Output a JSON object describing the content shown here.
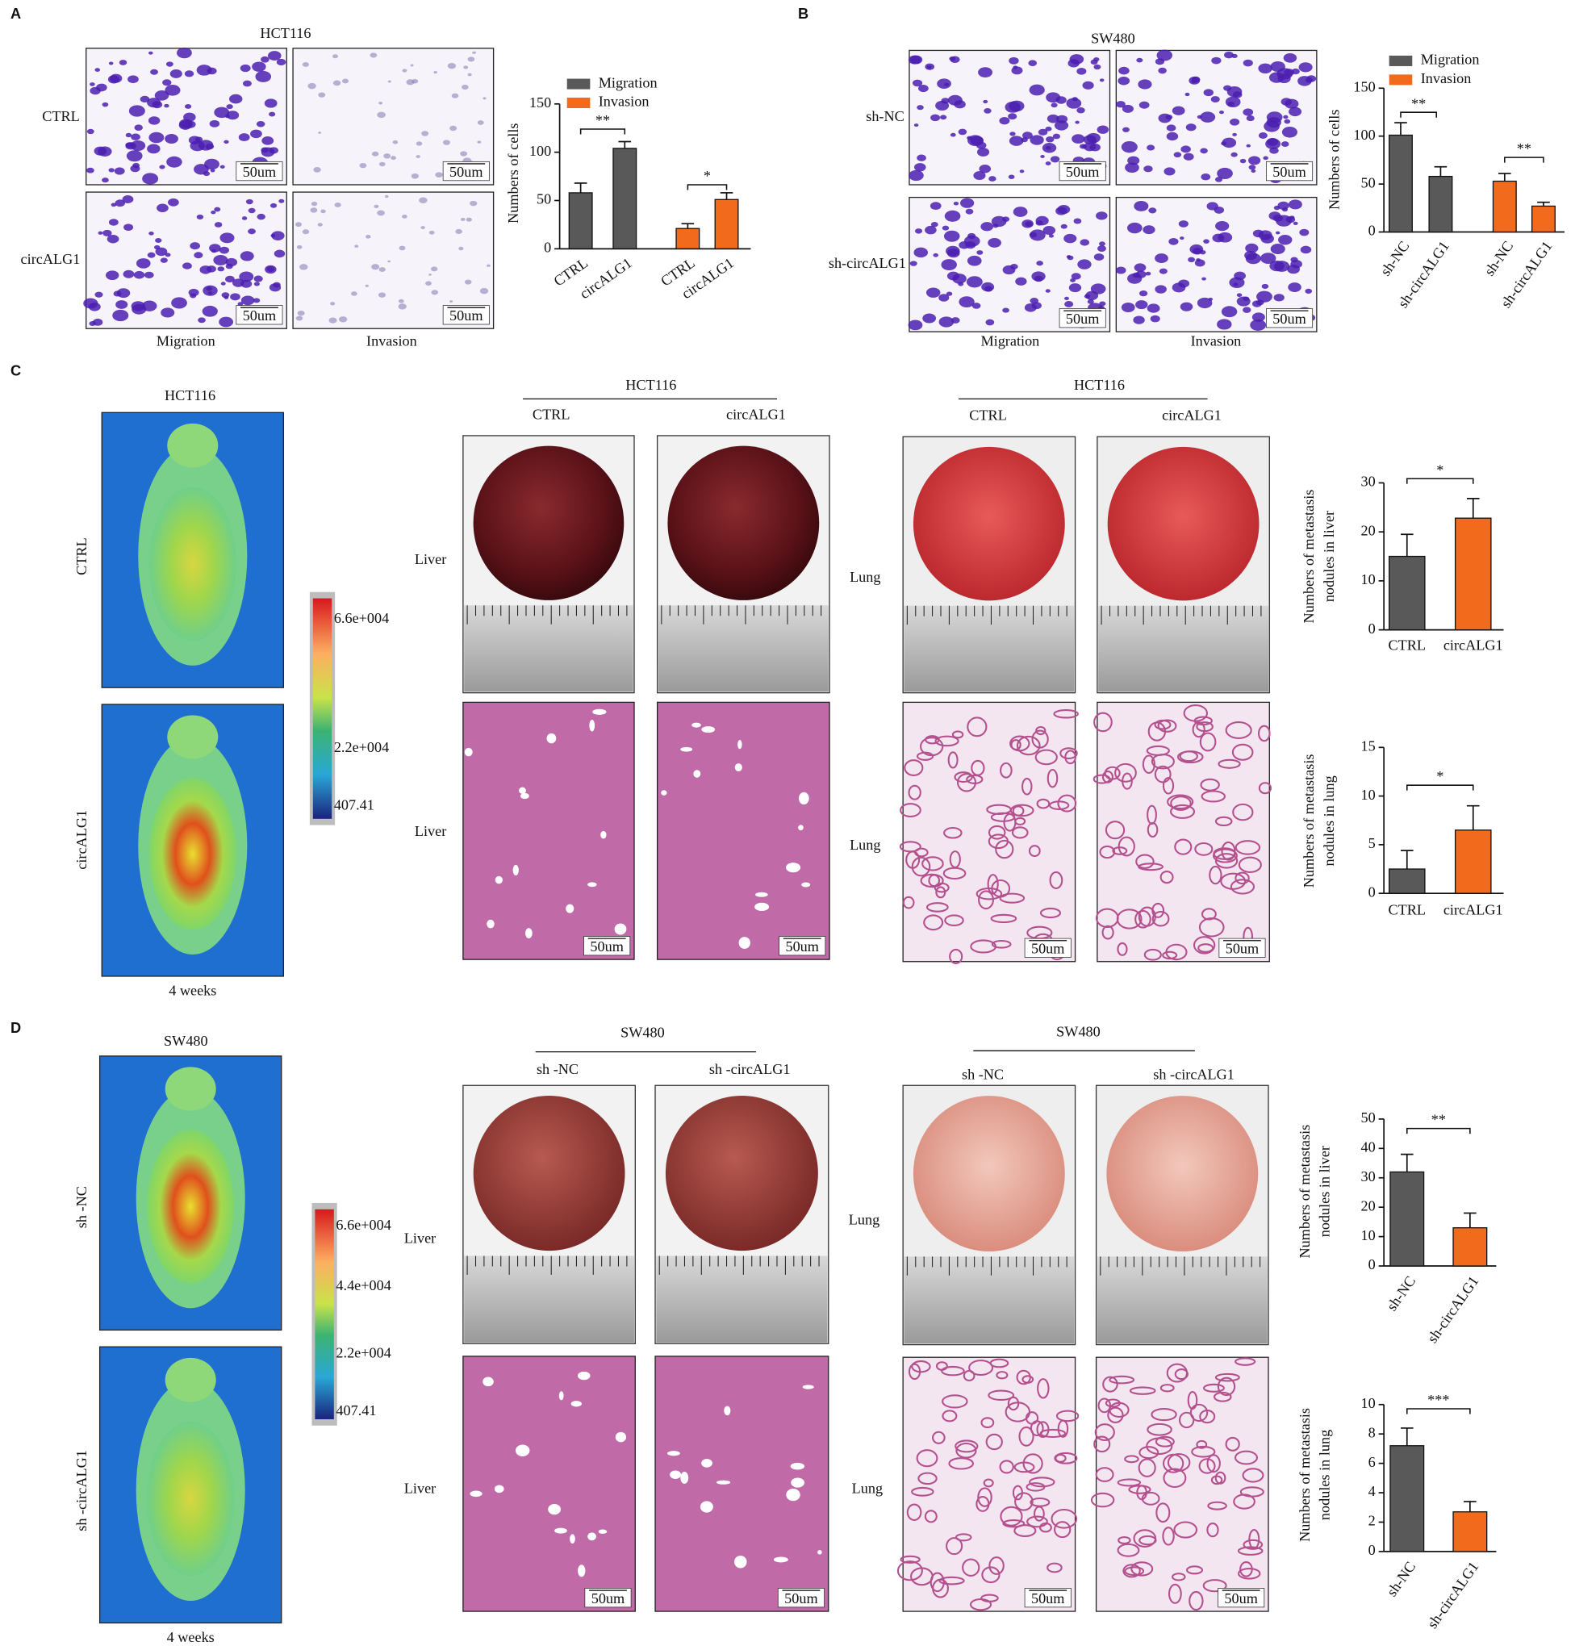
{
  "panel_labels": [
    "A",
    "B",
    "C",
    "D"
  ],
  "panel_a": {
    "cell_line": "HCT116",
    "rows": [
      "CTRL",
      "circALG1"
    ],
    "columns": [
      "Migration",
      "Invasion"
    ],
    "scale_bar": "50um"
  },
  "panel_b": {
    "cell_line": "SW480",
    "rows": [
      "sh-NC",
      "sh-circALG1"
    ],
    "columns": [
      "Migration",
      "Invasion"
    ],
    "scale_bar": "50um"
  },
  "panel_c": {
    "imaging": {
      "cell_line": "HCT116",
      "rows": [
        "CTRL",
        "circALG1"
      ],
      "time": "4  weeks",
      "colorbar": [
        "6.6e+004",
        "2.2e+004",
        "407.41"
      ]
    },
    "liver": {
      "cell_line": "HCT116",
      "groups": [
        "CTRL",
        "circALG1"
      ],
      "rows": [
        "Liver",
        "Liver"
      ]
    },
    "lung": {
      "cell_line": "HCT116",
      "groups": [
        "CTRL",
        "circALG1"
      ],
      "rows": [
        "Lung",
        "Lung"
      ]
    },
    "scale_bar": "50um"
  },
  "panel_d": {
    "imaging": {
      "cell_line": "SW480",
      "rows": [
        "sh -NC",
        "sh -circALG1"
      ],
      "time": "4  weeks",
      "colorbar": [
        "6.6e+004",
        "4.4e+004",
        "2.2e+004",
        "407.41"
      ]
    },
    "liver": {
      "cell_line": "SW480",
      "groups": [
        "sh -NC",
        "sh -circALG1"
      ],
      "rows": [
        "Liver",
        "Liver"
      ]
    },
    "lung": {
      "cell_line": "SW480",
      "groups": [
        "sh -NC",
        "sh -circALG1"
      ],
      "rows": [
        "Lung",
        "Lung"
      ]
    },
    "scale_bar": "50um"
  },
  "chart_data": [
    {
      "type": "bar",
      "ylabel": "Numbers of cells",
      "categories": [
        "CTRL",
        "circALG1"
      ],
      "series": [
        {
          "name": "Migration",
          "color": "#595959",
          "values": [
            58,
            104
          ],
          "errors": [
            10,
            7
          ]
        },
        {
          "name": "Invasion",
          "color": "#f26b1d",
          "values": [
            21,
            51
          ],
          "errors": [
            5,
            7
          ]
        }
      ],
      "ylim": [
        0,
        150
      ],
      "yticks": [
        0,
        50,
        100,
        150
      ],
      "annotations": [
        "**",
        "*"
      ]
    },
    {
      "type": "bar",
      "ylabel": "Numbers of cells",
      "categories": [
        "sh-NC",
        "sh-circALG1"
      ],
      "series": [
        {
          "name": "Migration",
          "color": "#595959",
          "values": [
            101,
            58
          ],
          "errors": [
            13,
            10
          ]
        },
        {
          "name": "Invasion",
          "color": "#f26b1d",
          "values": [
            53,
            27
          ],
          "errors": [
            8,
            4
          ]
        }
      ],
      "ylim": [
        0,
        150
      ],
      "yticks": [
        0,
        50,
        100,
        150
      ],
      "annotations": [
        "**",
        "**"
      ]
    },
    {
      "type": "bar",
      "ylabel": [
        "Numbers of metastasis",
        "nodules in liver"
      ],
      "categories": [
        "CTRL",
        "circALG1"
      ],
      "values": [
        15,
        22.8
      ],
      "errors": [
        4.5,
        4
      ],
      "colors": [
        "#595959",
        "#f26b1d"
      ],
      "ylim": [
        0,
        30
      ],
      "yticks": [
        0,
        10,
        20,
        30
      ],
      "annotations": [
        "*"
      ]
    },
    {
      "type": "bar",
      "ylabel": [
        "Numbers of metastasis",
        "nodules in lung"
      ],
      "categories": [
        "CTRL",
        "circALG1"
      ],
      "values": [
        2.5,
        6.5
      ],
      "errors": [
        1.9,
        2.5
      ],
      "colors": [
        "#595959",
        "#f26b1d"
      ],
      "ylim": [
        0,
        15
      ],
      "yticks": [
        0,
        5,
        10,
        15
      ],
      "annotations": [
        "*"
      ]
    },
    {
      "type": "bar",
      "ylabel": [
        "Numbers of metastasis",
        "nodules in liver"
      ],
      "categories": [
        "sh-NC",
        "sh-circALG1"
      ],
      "values": [
        32,
        13
      ],
      "errors": [
        6,
        5
      ],
      "colors": [
        "#595959",
        "#f26b1d"
      ],
      "ylim": [
        0,
        50
      ],
      "yticks": [
        0,
        10,
        20,
        30,
        40,
        50
      ],
      "annotations": [
        "**"
      ]
    },
    {
      "type": "bar",
      "ylabel": [
        "Numbers of metastasis",
        "nodules in lung"
      ],
      "categories": [
        "sh-NC",
        "sh-circALG1"
      ],
      "values": [
        7.2,
        2.7
      ],
      "errors": [
        1.2,
        0.7
      ],
      "colors": [
        "#595959",
        "#f26b1d"
      ],
      "ylim": [
        0,
        10
      ],
      "yticks": [
        0,
        2,
        4,
        6,
        8,
        10
      ],
      "annotations": [
        "***"
      ]
    }
  ]
}
